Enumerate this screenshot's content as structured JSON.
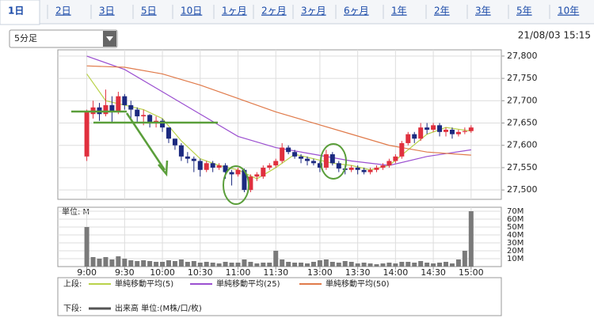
{
  "tabs": [
    "1日",
    "2日",
    "3日",
    "5日",
    "10日",
    "1ヶ月",
    "2ヶ月",
    "3ヶ月",
    "6ヶ月",
    "1年",
    "2年",
    "3年",
    "5年",
    "10年"
  ],
  "active_tab": 0,
  "dropdown": "5分足",
  "timestamp": "21/08/03 15:15",
  "chart_data": [
    {
      "type": "candlestick",
      "up_color": "#e0303e",
      "down_color": "#1c2a80",
      "open": [
        27575,
        27670,
        27685,
        27670,
        27690,
        27675,
        27710,
        27690,
        27680,
        27665,
        27668,
        27650,
        27655,
        27640,
        27615,
        27600,
        27575,
        27570,
        27565,
        27545,
        27560,
        27550,
        27555,
        27540,
        27535,
        27545,
        27500,
        27530,
        27530,
        27550,
        27555,
        27565,
        27595,
        27585,
        27575,
        27570,
        27565,
        27560,
        27550,
        27580,
        27560,
        27548,
        27545,
        27550,
        27545,
        27540,
        27545,
        27550,
        27555,
        27565,
        27575,
        27605,
        27625,
        27615,
        27640,
        27635,
        27645,
        27630,
        27635,
        27625,
        27630,
        27632
      ],
      "high": [
        27680,
        27700,
        27695,
        27725,
        27710,
        27720,
        27715,
        27700,
        27685,
        27680,
        27670,
        27665,
        27660,
        27640,
        27615,
        27605,
        27585,
        27575,
        27570,
        27565,
        27565,
        27560,
        27560,
        27545,
        27550,
        27548,
        27535,
        27540,
        27555,
        27560,
        27570,
        27605,
        27600,
        27590,
        27580,
        27575,
        27570,
        27565,
        27590,
        27585,
        27565,
        27555,
        27555,
        27555,
        27550,
        27550,
        27555,
        27560,
        27570,
        27580,
        27610,
        27630,
        27630,
        27650,
        27650,
        27650,
        27650,
        27640,
        27640,
        27635,
        27640,
        27645
      ],
      "low": [
        27565,
        27660,
        27655,
        27665,
        27650,
        27670,
        27680,
        27660,
        27650,
        27645,
        27640,
        27640,
        27630,
        27605,
        27590,
        27565,
        27560,
        27540,
        27530,
        27540,
        27540,
        27545,
        27525,
        27510,
        27530,
        27495,
        27495,
        27520,
        27525,
        27545,
        27550,
        27560,
        27580,
        27570,
        27560,
        27555,
        27555,
        27540,
        27545,
        27555,
        27540,
        27535,
        27540,
        27535,
        27535,
        27535,
        27540,
        27545,
        27550,
        27560,
        27570,
        27600,
        27605,
        27610,
        27625,
        27630,
        27620,
        27620,
        27615,
        27620,
        27625,
        27628
      ],
      "close": [
        27677,
        27685,
        27670,
        27690,
        27675,
        27710,
        27690,
        27680,
        27665,
        27668,
        27650,
        27655,
        27640,
        27615,
        27600,
        27575,
        27570,
        27565,
        27545,
        27560,
        27550,
        27555,
        27540,
        27535,
        27545,
        27500,
        27530,
        27535,
        27550,
        27555,
        27565,
        27595,
        27585,
        27575,
        27570,
        27565,
        27560,
        27550,
        27580,
        27560,
        27548,
        27545,
        27550,
        27545,
        27540,
        27545,
        27550,
        27555,
        27565,
        27575,
        27605,
        27625,
        27615,
        27640,
        27635,
        27645,
        27630,
        27635,
        27625,
        27630,
        27632,
        27640
      ],
      "series": [
        {
          "name": "単純移動平均(5)",
          "color": "#b9d24a",
          "x": [
            0,
            3,
            6,
            9,
            12,
            15,
            18,
            21,
            24,
            27,
            30,
            33,
            36,
            39,
            42,
            45,
            48,
            51,
            54,
            57,
            61
          ],
          "values": [
            27760,
            27700,
            27690,
            27680,
            27660,
            27610,
            27570,
            27555,
            27545,
            27525,
            27550,
            27580,
            27570,
            27560,
            27555,
            27545,
            27555,
            27590,
            27625,
            27640,
            27632
          ]
        },
        {
          "name": "単純移動平均(25)",
          "color": "#9b4fd0",
          "x": [
            0,
            6,
            12,
            18,
            24,
            30,
            36,
            42,
            48,
            54,
            61
          ],
          "values": [
            27800,
            27770,
            27720,
            27670,
            27620,
            27595,
            27580,
            27565,
            27555,
            27575,
            27590
          ]
        },
        {
          "name": "単純移動平均(50)",
          "color": "#e07a4a",
          "x": [
            0,
            6,
            12,
            18,
            24,
            30,
            36,
            42,
            48,
            54,
            61
          ],
          "values": [
            27778,
            27775,
            27760,
            27735,
            27705,
            27675,
            27650,
            27625,
            27600,
            27585,
            27578
          ]
        }
      ],
      "xlim": [
        -4.6,
        65.8
      ],
      "xticks": [
        {
          "value": 0,
          "label": "9:00"
        },
        {
          "value": 6,
          "label": "9:30"
        },
        {
          "value": 12,
          "label": "10:00"
        },
        {
          "value": 18,
          "label": "10:30"
        },
        {
          "value": 24,
          "label": "11:00"
        },
        {
          "value": 30,
          "label": "11:30"
        },
        {
          "value": 37,
          "label": "13:00"
        },
        {
          "value": 43,
          "label": "13:30"
        },
        {
          "value": 49,
          "label": "14:00"
        },
        {
          "value": 55,
          "label": "14:30"
        },
        {
          "value": 61,
          "label": "15:00"
        }
      ],
      "ylim": [
        27479,
        27814
      ],
      "yticks": [
        {
          "value": 27500,
          "label": "27,500"
        },
        {
          "value": 27550,
          "label": "27,550"
        },
        {
          "value": 27600,
          "label": "27,600"
        },
        {
          "value": 27650,
          "label": "27,650"
        },
        {
          "value": 27700,
          "label": "27,700"
        },
        {
          "value": 27750,
          "label": "27,750"
        },
        {
          "value": 27800,
          "label": "27,800"
        }
      ],
      "grid": true
    },
    {
      "type": "bar",
      "title": "単位: M",
      "color": "#7a7a7a",
      "values": [
        50,
        12,
        10,
        12,
        9,
        13,
        10,
        8,
        7,
        8,
        7,
        6,
        6,
        8,
        7,
        9,
        6,
        7,
        5,
        6,
        5,
        4,
        6,
        5,
        5,
        9,
        6,
        4,
        5,
        5,
        20,
        9,
        6,
        5,
        5,
        4,
        6,
        8,
        9,
        6,
        5,
        7,
        6,
        4,
        5,
        4,
        3,
        4,
        5,
        4,
        6,
        6,
        5,
        7,
        5,
        4,
        5,
        6,
        4,
        9,
        20,
        70
      ],
      "ylim": [
        0,
        75
      ],
      "yticks": [
        {
          "value": 10,
          "label": "10M"
        },
        {
          "value": 20,
          "label": "20M"
        },
        {
          "value": 30,
          "label": "30M"
        },
        {
          "value": 40,
          "label": "40M"
        },
        {
          "value": 50,
          "label": "50M"
        },
        {
          "value": 60,
          "label": "60M"
        },
        {
          "value": 70,
          "label": "70M"
        }
      ],
      "grid": true
    }
  ],
  "legend": {
    "upper": "上段:",
    "lower": "下段:",
    "lower_item": "出来高 単位:(M株/口/枚)",
    "lower_color": "#555555"
  }
}
